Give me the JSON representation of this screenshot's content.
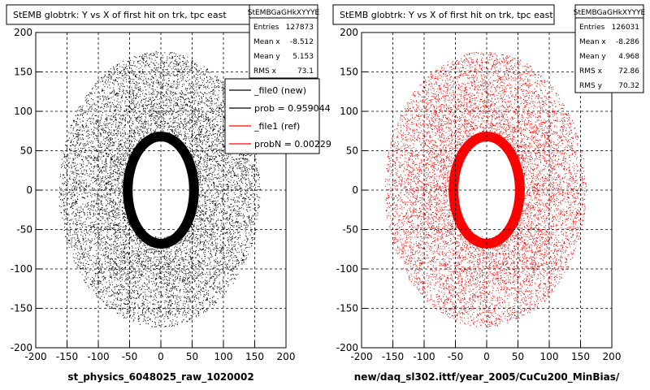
{
  "chart_data": [
    {
      "type": "scatter",
      "title": "StEMB globtrk: Y vs X of first hit on trk, tpc east",
      "xlabel": "st_physics_6048025_raw_1020002",
      "ylabel": "",
      "xlim": [
        -200,
        200
      ],
      "ylim": [
        -200,
        200
      ],
      "x_ticks": [
        "-200",
        "-150",
        "-100",
        "-50",
        "0",
        "50",
        "100",
        "150",
        "200"
      ],
      "y_ticks": [
        "-200",
        "-150",
        "-100",
        "-50",
        "0",
        "50",
        "100",
        "150",
        "200"
      ],
      "grid": true,
      "color": "#000000",
      "stats": {
        "title": "StEMBGaGHkXYYYE",
        "rows": [
          {
            "label": "Entries",
            "value": "127873"
          },
          {
            "label": "Mean x",
            "value": "-8.512"
          },
          {
            "label": "Mean y",
            "value": "5.153"
          },
          {
            "label": "RMS x",
            "value": "73.1"
          }
        ]
      },
      "legend": [
        {
          "text": "_file0 (new)",
          "color": "#000000"
        },
        {
          "text": "prob = 0.959044",
          "color": "#000000"
        },
        {
          "text": "_file1 (ref)",
          "color": "#ff0000"
        },
        {
          "text": "probN = 0.00229",
          "color": "#ff0000"
        }
      ],
      "distribution": {
        "inner_radius_x": 45,
        "inner_radius_y": 60,
        "outer_radius": 175,
        "density_mean_x": -8.512,
        "density_mean_y": 5.153
      }
    },
    {
      "type": "scatter",
      "title": "StEMB globtrk: Y vs X of first hit on trk, tpc east",
      "xlabel": "new/daq_sl302.ittf/year_2005/CuCu200_MinBias/",
      "ylabel": "",
      "xlim": [
        -200,
        200
      ],
      "ylim": [
        -200,
        200
      ],
      "x_ticks": [
        "-200",
        "-150",
        "-100",
        "-50",
        "0",
        "50",
        "100",
        "150",
        "200"
      ],
      "y_ticks": [
        "-200",
        "-150",
        "-100",
        "-50",
        "0",
        "50",
        "100",
        "150",
        "200"
      ],
      "grid": true,
      "color": "#ff0000",
      "stats": {
        "title": "StEMBGaGHkXYYYE",
        "rows": [
          {
            "label": "Entries",
            "value": "126031"
          },
          {
            "label": "Mean x",
            "value": "-8.286"
          },
          {
            "label": "Mean y",
            "value": "4.968"
          },
          {
            "label": "RMS x",
            "value": "72.86"
          },
          {
            "label": "RMS y",
            "value": "70.32"
          }
        ]
      },
      "distribution": {
        "inner_radius_x": 45,
        "inner_radius_y": 60,
        "outer_radius": 175,
        "density_mean_x": -8.286,
        "density_mean_y": 4.968
      }
    }
  ]
}
